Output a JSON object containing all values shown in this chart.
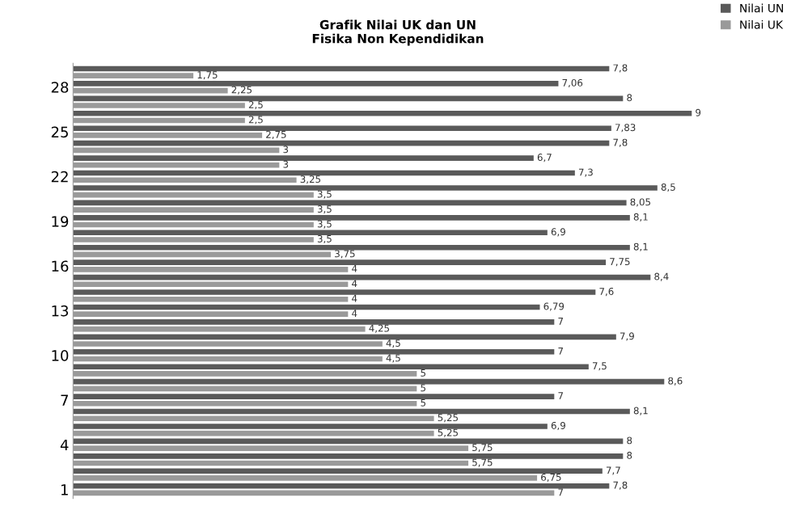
{
  "chart_data": {
    "type": "bar",
    "orientation": "horizontal",
    "title": "Grafik Nilai UK dan UN\nFisika Non Kependidikan",
    "categories": [
      null,
      "28",
      null,
      null,
      "25",
      null,
      null,
      "22",
      null,
      null,
      "19",
      null,
      null,
      "16",
      null,
      null,
      "13",
      null,
      null,
      "10",
      null,
      null,
      "7",
      null,
      null,
      "4",
      null,
      null,
      "1"
    ],
    "series": [
      {
        "name": "Nilai UN",
        "color": "#5a5a5a",
        "values": [
          7.8,
          7.06,
          8,
          9,
          7.83,
          7.8,
          6.7,
          7.3,
          8.5,
          8.05,
          8.1,
          6.9,
          8.1,
          7.75,
          8.4,
          7.6,
          6.79,
          7,
          7.9,
          7,
          7.5,
          8.6,
          7,
          8.1,
          6.9,
          8,
          8,
          7.7,
          7.8
        ],
        "value_labels": [
          "7,8",
          "7,06",
          "8",
          "9",
          "7,83",
          "7,8",
          "6,7",
          "7,3",
          "8,5",
          "8,05",
          "8,1",
          "6,9",
          "8,1",
          "7,75",
          "8,4",
          "7,6",
          "6,79",
          "7",
          "7,9",
          "7",
          "7,5",
          "8,6",
          "7",
          "8,1",
          "6,9",
          "8",
          "8",
          "7,7",
          "7,8"
        ]
      },
      {
        "name": "Nilai UK",
        "color": "#9a9a9a",
        "values": [
          1.75,
          2.25,
          2.5,
          2.5,
          2.75,
          3,
          3,
          3.25,
          3.5,
          3.5,
          3.5,
          3.5,
          3.75,
          4,
          4,
          4,
          4,
          4.25,
          4.5,
          4.5,
          5,
          5,
          5,
          5.25,
          5.25,
          5.75,
          5.75,
          6.75,
          7
        ],
        "value_labels": [
          "1,75",
          "2,25",
          "2,5",
          "2,5",
          "2,75",
          "3",
          "3",
          "3,25",
          "3,5",
          "3,5",
          "3,5",
          "3,5",
          "3,75",
          "4",
          "4",
          "4",
          "4",
          "4,25",
          "4,5",
          "4,5",
          "5",
          "5",
          "5",
          "5,25",
          "5,25",
          "5,75",
          "5,75",
          "6,75",
          "7"
        ]
      }
    ],
    "legend": "top right"
  }
}
